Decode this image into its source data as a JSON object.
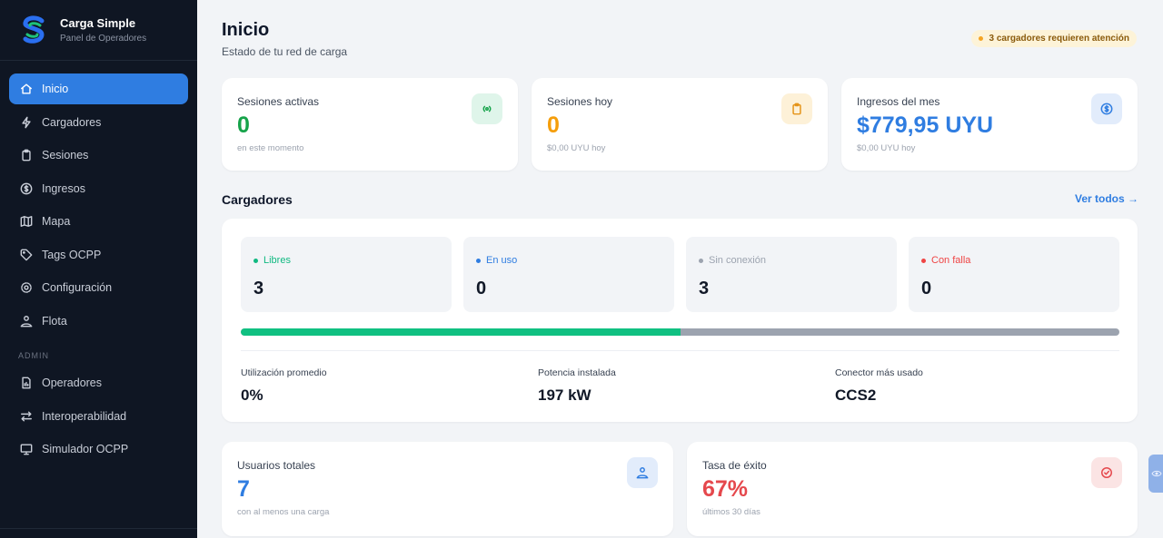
{
  "brand": {
    "title": "Carga Simple",
    "subtitle": "Panel de Operadores"
  },
  "sidebar": {
    "items": [
      {
        "label": "Inicio",
        "icon": "home-icon",
        "active": true
      },
      {
        "label": "Cargadores",
        "icon": "bolt-icon"
      },
      {
        "label": "Sesiones",
        "icon": "clipboard-icon"
      },
      {
        "label": "Ingresos",
        "icon": "dollar-circle-icon"
      },
      {
        "label": "Mapa",
        "icon": "map-icon"
      },
      {
        "label": "Tags OCPP",
        "icon": "tag-icon"
      },
      {
        "label": "Configuración",
        "icon": "gear-icon"
      },
      {
        "label": "Flota",
        "icon": "fleet-icon"
      }
    ],
    "admin_label": "ADMIN",
    "admin_items": [
      {
        "label": "Operadores",
        "icon": "document-icon"
      },
      {
        "label": "Interoperabilidad",
        "icon": "arrows-icon"
      },
      {
        "label": "Simulador OCPP",
        "icon": "monitor-icon"
      }
    ]
  },
  "header": {
    "title": "Inicio",
    "subtitle": "Estado de tu red de carga",
    "alert": "3 cargadores requieren atención"
  },
  "stats": [
    {
      "label": "Sesiones activas",
      "value": "0",
      "foot": "en este momento",
      "color": "#16a34a",
      "icon": "signal-icon"
    },
    {
      "label": "Sesiones hoy",
      "value": "0",
      "foot": "$0,00 UYU hoy",
      "color": "#f59e0b",
      "icon": "clipboard-icon"
    },
    {
      "label": "Ingresos del mes",
      "value": "$779,95 UYU",
      "foot": "$0,00 UYU hoy",
      "color": "#2f7de1",
      "icon": "dollar-circle-icon"
    }
  ],
  "chargers": {
    "title": "Cargadores",
    "see_all": "Ver todos →",
    "status": [
      {
        "label": "Libres",
        "value": "3",
        "color": "#10b981"
      },
      {
        "label": "En uso",
        "value": "0",
        "color": "#2f7de1"
      },
      {
        "label": "Sin conexión",
        "value": "3",
        "color": "#9ca3af"
      },
      {
        "label": "Con falla",
        "value": "0",
        "color": "#ef4444"
      }
    ],
    "available_fraction": 0.5,
    "metrics": [
      {
        "label": "Utilización promedio",
        "value": "0%"
      },
      {
        "label": "Potencia instalada",
        "value": "197 kW"
      },
      {
        "label": "Conector más usado",
        "value": "CCS2"
      }
    ]
  },
  "bottom_stats": [
    {
      "label": "Usuarios totales",
      "value": "7",
      "foot": "con al menos una carga",
      "color": "#2f7de1",
      "icon": "users-icon"
    },
    {
      "label": "Tasa de éxito",
      "value": "67%",
      "foot": "últimos 30 días",
      "color": "#e5484d",
      "icon": "check-circle-icon"
    }
  ]
}
